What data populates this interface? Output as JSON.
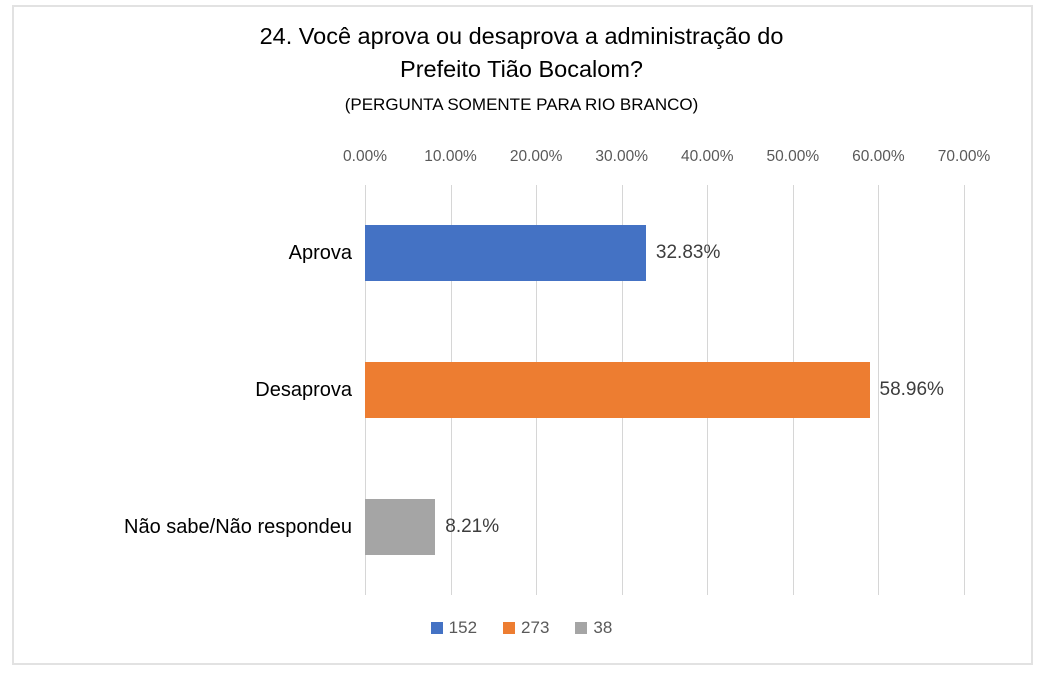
{
  "title_lines": [
    "24. Você aprova ou desaprova a administração do",
    "Prefeito Tião Bocalom?"
  ],
  "subtitle": "(PERGUNTA SOMENTE PARA RIO BRANCO)",
  "chart_data": {
    "type": "bar",
    "orientation": "horizontal",
    "title": "24. Você aprova ou desaprova a administração do Prefeito Tião Bocalom?",
    "subtitle": "(PERGUNTA SOMENTE PARA RIO BRANCO)",
    "categories": [
      "Aprova",
      "Desaprova",
      "Não sabe/Não respondeu"
    ],
    "values": [
      32.83,
      58.96,
      8.21
    ],
    "value_labels": [
      "32.83%",
      "58.96%",
      "8.21%"
    ],
    "counts": [
      152,
      273,
      38
    ],
    "bar_colors": [
      "#4472C4",
      "#ED7D31",
      "#A5A5A5"
    ],
    "axis": {
      "position": "top",
      "min": 0,
      "max": 70,
      "tick_step": 10,
      "tick_labels": [
        "0.00%",
        "10.00%",
        "20.00%",
        "30.00%",
        "40.00%",
        "50.00%",
        "60.00%",
        "70.00%"
      ]
    },
    "grid": "vertical",
    "gridline_color": "#d6d6d6",
    "legend": {
      "position": "bottom",
      "entries": [
        {
          "label": "152",
          "color": "#4472C4"
        },
        {
          "label": "273",
          "color": "#ED7D31"
        },
        {
          "label": "38",
          "color": "#A5A5A5"
        }
      ]
    }
  }
}
